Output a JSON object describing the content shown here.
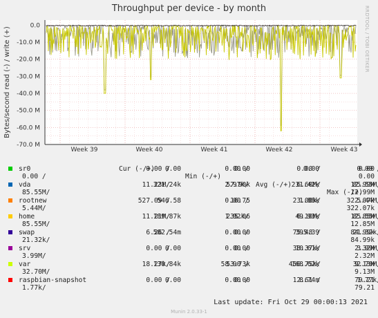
{
  "title": "Throughput per device - by month",
  "sidetag": "RRDTOOL / TOBI OETIKER",
  "footer": "Munin 2.0.33-1",
  "last_update": "Last update: Fri Oct 29 00:00:13 2021",
  "colors": {
    "grid_major": "#e8a0a0",
    "grid_minor": "#f0c8c8",
    "plot_bg": "#ffffff",
    "line_yellow": "#c8c800",
    "line_gray": "#9a9a8a",
    "line_black": "#222222"
  },
  "chart_data": {
    "type": "line",
    "title": "Throughput per device - by month",
    "ylabel": "Bytes/second read (-) / write (+)",
    "yticks": [
      "0.0",
      "-10.0 M",
      "-20.0 M",
      "-30.0 M",
      "-40.0 M",
      "-50.0 M",
      "-60.0 M",
      "-70.0 M"
    ],
    "ylim": [
      -70000000,
      3000000
    ],
    "xticks": [
      "Week 39",
      "Week 40",
      "Week 41",
      "Week 42",
      "Week 43"
    ],
    "notable_dips": [
      {
        "x": "Week 39",
        "value": -40000000
      },
      {
        "x": "Week 40",
        "value": -32000000
      },
      {
        "x": "Week 42",
        "value": -62000000
      },
      {
        "x": "Week 43",
        "value": -31000000
      }
    ],
    "typical_range": [
      -17000000,
      0
    ]
  },
  "legend": {
    "headers": [
      "Cur (-/+)",
      "Min (-/+)",
      "Avg (-/+)",
      "Max (-/+)"
    ],
    "rows": [
      {
        "name": "sr0",
        "color": "#00cc00",
        "cur_r": "0.00 /",
        "cur_w": "0.00",
        "min_r": "0.00 /",
        "min_w": "0.00",
        "avg_r": "0.00 /",
        "avg_w": "0.00",
        "max_r": "0.00 /",
        "max_w": "0.00",
        "cont": "0.00 /",
        "cont_max": "0.00"
      },
      {
        "name": "vda",
        "color": "#0066b3",
        "cur_r": "11.23M/",
        "cur_w": "321.24k",
        "min_r": "2.97k/",
        "min_w": "57.90k",
        "avg_r": "6.60M/",
        "avg_w": "231.42k",
        "max_r": "85.55M/",
        "max_w": "12.99M",
        "cont": "85.55M/",
        "cont_max": "12.99M"
      },
      {
        "name": "rootnew",
        "color": "#ff8000",
        "cur_r": "527.09 /",
        "cur_w": "546.58",
        "min_r": "0.00 /",
        "min_w": "16.75",
        "avg_r": "23.08k/",
        "avg_w": "1.88k",
        "max_r": "5.44M/",
        "max_w": "322.07k",
        "cont": "5.44M/",
        "cont_max": "322.07k"
      },
      {
        "name": "home",
        "color": "#ffcc00",
        "cur_r": "11.21M/",
        "cur_w": "189.87k",
        "min_r": "1.92k/",
        "min_w": "235.06",
        "avg_r": "6.10M/",
        "avg_w": "49.93k",
        "max_r": "85.55M/",
        "max_w": "12.85M",
        "cont": "85.55M/",
        "cont_max": "12.85M"
      },
      {
        "name": "swap",
        "color": "#330099",
        "cur_r": "6.26 /",
        "cur_w": "582.54m",
        "min_r": "0.00 /",
        "min_w": "0.00",
        "avg_r": "75.48 /",
        "avg_w": "395.39",
        "max_r": "21.32k/",
        "max_w": "84.99k",
        "cont": "21.32k/",
        "cont_max": "84.99k"
      },
      {
        "name": "srv",
        "color": "#990099",
        "cur_r": "0.00 /",
        "cur_w": "0.00",
        "min_r": "0.00 /",
        "min_w": "0.00",
        "avg_r": "38.37k/",
        "avg_w": "10.61k",
        "max_r": "3.99M/",
        "max_w": "2.32M",
        "cont": "3.99M/",
        "cont_max": "2.32M"
      },
      {
        "name": "var",
        "color": "#ccff00",
        "cur_r": "18.27k/",
        "cur_w": "130.84k",
        "min_r": "58.90 /",
        "min_w": "53.73k",
        "avg_r": "456.75k/",
        "avg_w": "168.62k",
        "max_r": "32.70M/",
        "max_w": "9.13M",
        "cont": "32.70M/",
        "cont_max": "9.13M"
      },
      {
        "name": "raspbian-snapshot",
        "color": "#ff0000",
        "cur_r": "0.00 /",
        "cur_w": "0.00",
        "min_r": "0.00 /",
        "min_w": "0.00",
        "avg_r": "12.61 /",
        "avg_w": "8.74m",
        "max_r": "1.77k/",
        "max_w": "79.21",
        "cont": "1.77k/",
        "cont_max": "79.21"
      }
    ]
  }
}
